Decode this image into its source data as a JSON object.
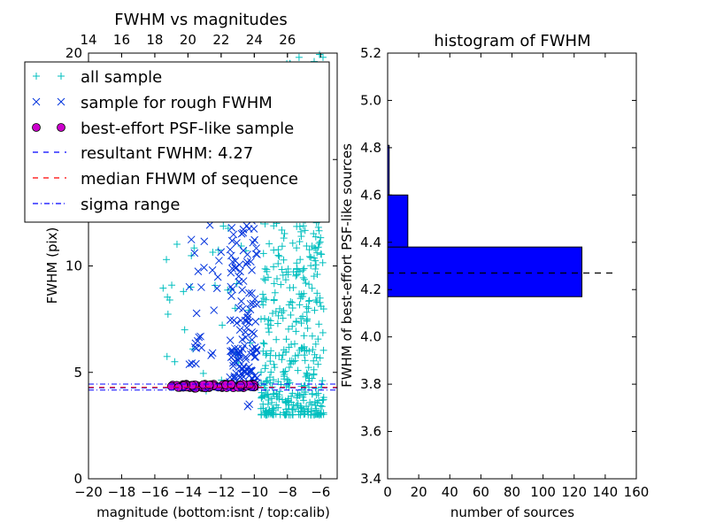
{
  "chart_data": [
    {
      "type": "scatter",
      "title": "FWHM vs magnitudes",
      "xlabel": "magnitude (bottom:isnt / top:calib)",
      "ylabel": "FWHM (pix)",
      "xlim": [
        -20,
        -5
      ],
      "ylim": [
        0,
        20
      ],
      "x_ticks": [
        -20,
        -18,
        -16,
        -14,
        -12,
        -10,
        -8,
        -6
      ],
      "x_tick_labels": [
        "−20",
        "−18",
        "−16",
        "−14",
        "−12",
        "−10",
        "−8",
        "−6"
      ],
      "y_ticks": [
        0,
        5,
        10,
        15,
        20
      ],
      "y_tick_labels": [
        "0",
        "5",
        "10",
        "15",
        "20"
      ],
      "top_axis": {
        "ticks": [
          14,
          16,
          18,
          20,
          22,
          24,
          26
        ],
        "tick_labels": [
          "14",
          "16",
          "18",
          "20",
          "22",
          "24",
          "26"
        ],
        "offset": 34
      },
      "grid": false,
      "legend_position": "upper-left",
      "series": [
        {
          "name": "all sample",
          "marker": "+",
          "color": "#00bfbf",
          "clusters": [
            {
              "x_range": [
                -9.6,
                -5.8
              ],
              "y_range": [
                3.0,
                20.0
              ],
              "count": 520,
              "skew": "low"
            },
            {
              "x_range": [
                -15.5,
                -10.2
              ],
              "y_range": [
                4.0,
                13.5
              ],
              "count": 40,
              "skew": "none"
            }
          ],
          "points": [
            [
              -15.3,
              10.3
            ],
            [
              -15.1,
              8.4
            ],
            [
              -14.8,
              5.5
            ],
            [
              -14.2,
              7.0
            ],
            [
              -13.7,
              6.1
            ],
            [
              -7.3,
              19.8
            ]
          ]
        },
        {
          "name": "sample for rough FWHM",
          "marker": "x",
          "color": "#0033dd",
          "clusters": [
            {
              "x_range": [
                -11.5,
                -9.8
              ],
              "y_range": [
                4.4,
                13.0
              ],
              "count": 150,
              "skew": "low"
            },
            {
              "x_range": [
                -14.0,
                -11.5
              ],
              "y_range": [
                4.5,
                12.5
              ],
              "count": 25,
              "skew": "none"
            }
          ],
          "points": [
            [
              -10.4,
              3.4
            ],
            [
              -10.3,
              3.5
            ],
            [
              -12.6,
              5.8
            ],
            [
              -13.2,
              9.0
            ]
          ]
        },
        {
          "name": "best-effort PSF-like sample",
          "marker": "o",
          "color": "#cc00cc",
          "clusters": [
            {
              "x_range": [
                -15.0,
                -9.9
              ],
              "y_range": [
                4.25,
                4.45
              ],
              "count": 90,
              "skew": "none"
            }
          ],
          "points": []
        },
        {
          "name": "resultant FWHM: 4.27",
          "line": "dashed",
          "color": "#0000ff",
          "y": 4.27
        },
        {
          "name": "median FHWM of sequence",
          "line": "dashed",
          "color": "#ff0000",
          "y": 4.3
        },
        {
          "name": "sigma range",
          "line": "dashdot",
          "color": "#0000ff",
          "y_values": [
            4.17,
            4.45
          ]
        }
      ]
    },
    {
      "type": "bar",
      "orientation": "horizontal",
      "title": "histogram of FWHM",
      "xlabel": "number of sources",
      "ylabel": "FWHM of best-effort PSF-like sources",
      "xlim": [
        0,
        160
      ],
      "ylim": [
        3.4,
        5.2
      ],
      "x_ticks": [
        0,
        20,
        40,
        60,
        80,
        100,
        120,
        140,
        160
      ],
      "x_tick_labels": [
        "0",
        "20",
        "40",
        "60",
        "80",
        "100",
        "120",
        "140",
        "160"
      ],
      "y_ticks": [
        3.4,
        3.6,
        3.8,
        4.0,
        4.2,
        4.4,
        4.6,
        4.8,
        5.0,
        5.2
      ],
      "y_tick_labels": [
        "3.4",
        "3.6",
        "3.8",
        "4.0",
        "4.2",
        "4.4",
        "4.6",
        "4.8",
        "5.0",
        "5.2"
      ],
      "bar_color": "#0000ff",
      "bins": [
        {
          "low": 4.17,
          "high": 4.38,
          "count": 125
        },
        {
          "low": 4.38,
          "high": 4.6,
          "count": 13
        },
        {
          "low": 4.6,
          "high": 4.81,
          "count": 1
        }
      ],
      "reference_line": {
        "y": 4.27,
        "x_range": [
          0,
          148
        ],
        "style": "dashed",
        "color": "#000000"
      }
    }
  ]
}
